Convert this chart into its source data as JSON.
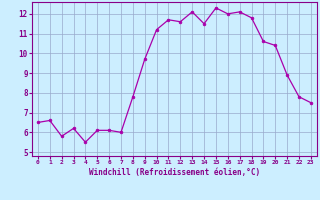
{
  "hours": [
    0,
    1,
    2,
    3,
    4,
    5,
    6,
    7,
    8,
    9,
    10,
    11,
    12,
    13,
    14,
    15,
    16,
    17,
    18,
    19,
    20,
    21,
    22,
    23
  ],
  "values": [
    6.5,
    6.6,
    5.8,
    6.2,
    5.5,
    6.1,
    6.1,
    6.0,
    7.8,
    9.7,
    11.2,
    11.7,
    11.6,
    12.1,
    11.5,
    12.3,
    12.0,
    12.1,
    11.8,
    10.6,
    10.4,
    8.9,
    7.8,
    7.5
  ],
  "line_color": "#aa00aa",
  "marker_color": "#aa00aa",
  "bg_color": "#cceeff",
  "grid_color": "#99aacc",
  "text_color": "#880088",
  "xlabel": "Windchill (Refroidissement éolien,°C)",
  "ylim": [
    4.8,
    12.6
  ],
  "xlim": [
    -0.5,
    23.5
  ],
  "yticks": [
    5,
    6,
    7,
    8,
    9,
    10,
    11,
    12
  ],
  "xticks": [
    0,
    1,
    2,
    3,
    4,
    5,
    6,
    7,
    8,
    9,
    10,
    11,
    12,
    13,
    14,
    15,
    16,
    17,
    18,
    19,
    20,
    21,
    22,
    23
  ]
}
